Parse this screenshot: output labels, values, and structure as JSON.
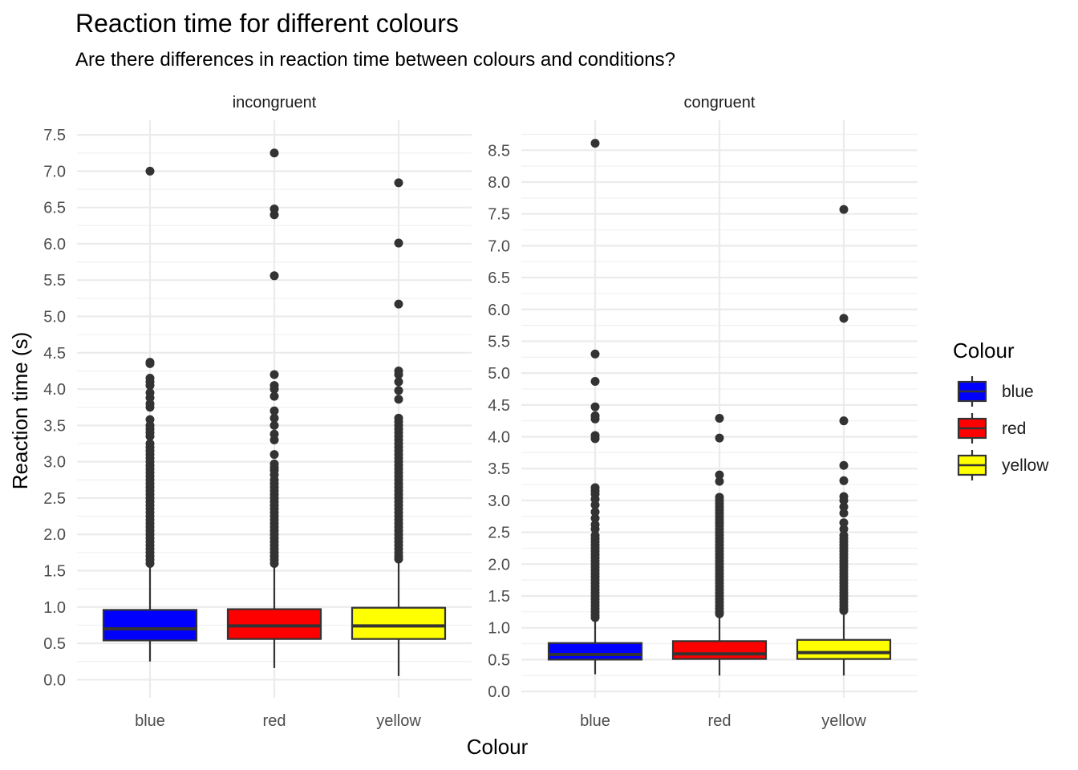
{
  "chart_data": {
    "type": "boxplot",
    "title": "Reaction time for different colours",
    "subtitle": "Are there differences in reaction time between colours and conditions?",
    "xlabel": "Colour",
    "ylabel": "Reaction time (s)",
    "legend": {
      "title": "Colour",
      "position": "right",
      "items": [
        {
          "label": "blue",
          "color": "#0000ff"
        },
        {
          "label": "red",
          "color": "#ff0000"
        },
        {
          "label": "yellow",
          "color": "#ffff00"
        }
      ]
    },
    "grid": true,
    "panels": [
      {
        "label": "incongruent",
        "ylim": [
          -0.25,
          7.7
        ],
        "yticks": [
          "0.0",
          "0.5",
          "1.0",
          "1.5",
          "2.0",
          "2.5",
          "3.0",
          "3.5",
          "4.0",
          "4.5",
          "5.0",
          "5.5",
          "6.0",
          "6.5",
          "7.0",
          "7.5"
        ],
        "categories": [
          "blue",
          "red",
          "yellow"
        ],
        "boxes": [
          {
            "category": "blue",
            "min": 0.25,
            "q1": 0.54,
            "median": 0.7,
            "q3": 0.96,
            "whisker_high": 1.58,
            "outliers": [
              7.0,
              4.37,
              4.35,
              4.15,
              4.1,
              4.05,
              3.95,
              3.88,
              3.8,
              3.75,
              3.58,
              3.5,
              3.45,
              3.4,
              3.35,
              3.25,
              3.2,
              3.15,
              3.1,
              3.05,
              3.0,
              2.95,
              2.9,
              2.85,
              2.8,
              2.75,
              2.7,
              2.65,
              2.6,
              2.55,
              2.5,
              2.45,
              2.4,
              2.35,
              2.3,
              2.25,
              2.2,
              2.15,
              2.1,
              2.05,
              2.0,
              1.95,
              1.9,
              1.85,
              1.8,
              1.75,
              1.7,
              1.65,
              1.6
            ]
          },
          {
            "category": "red",
            "min": 0.16,
            "q1": 0.56,
            "median": 0.74,
            "q3": 0.97,
            "whisker_high": 1.57,
            "outliers": [
              7.25,
              6.48,
              6.4,
              5.56,
              4.2,
              4.05,
              4.0,
              3.9,
              3.7,
              3.6,
              3.5,
              3.38,
              3.3,
              3.1,
              2.97,
              2.92,
              2.88,
              2.82,
              2.75,
              2.7,
              2.65,
              2.6,
              2.55,
              2.5,
              2.45,
              2.4,
              2.35,
              2.3,
              2.25,
              2.2,
              2.15,
              2.1,
              2.05,
              2.0,
              1.95,
              1.9,
              1.85,
              1.8,
              1.75,
              1.7,
              1.65,
              1.6
            ]
          },
          {
            "category": "yellow",
            "min": 0.05,
            "q1": 0.56,
            "median": 0.74,
            "q3": 0.99,
            "whisker_high": 1.63,
            "outliers": [
              6.84,
              6.01,
              5.17,
              4.25,
              4.2,
              4.1,
              3.98,
              3.86,
              3.6,
              3.55,
              3.5,
              3.45,
              3.4,
              3.35,
              3.3,
              3.25,
              3.2,
              3.15,
              3.1,
              3.05,
              3.0,
              2.95,
              2.9,
              2.85,
              2.8,
              2.75,
              2.7,
              2.65,
              2.6,
              2.55,
              2.5,
              2.45,
              2.4,
              2.35,
              2.3,
              2.25,
              2.2,
              2.15,
              2.1,
              2.05,
              2.0,
              1.95,
              1.9,
              1.85,
              1.8,
              1.75,
              1.7,
              1.66
            ]
          }
        ]
      },
      {
        "label": "congruent",
        "ylim": [
          -0.1,
          8.97
        ],
        "yticks": [
          "0.0",
          "0.5",
          "1.0",
          "1.5",
          "2.0",
          "2.5",
          "3.0",
          "3.5",
          "4.0",
          "4.5",
          "5.0",
          "5.5",
          "6.0",
          "6.5",
          "7.0",
          "7.5",
          "8.0",
          "8.5"
        ],
        "categories": [
          "blue",
          "red",
          "yellow"
        ],
        "boxes": [
          {
            "category": "blue",
            "min": 0.27,
            "q1": 0.5,
            "median": 0.58,
            "q3": 0.76,
            "whisker_high": 1.14,
            "outliers": [
              8.61,
              5.3,
              4.87,
              4.47,
              4.33,
              4.28,
              4.02,
              3.97,
              3.2,
              3.15,
              3.1,
              3.02,
              2.93,
              2.82,
              2.72,
              2.62,
              2.55,
              2.45,
              2.4,
              2.35,
              2.3,
              2.25,
              2.2,
              2.15,
              2.1,
              2.05,
              2.0,
              1.95,
              1.9,
              1.85,
              1.8,
              1.75,
              1.7,
              1.65,
              1.6,
              1.55,
              1.5,
              1.45,
              1.4,
              1.35,
              1.3,
              1.25,
              1.2,
              1.16
            ]
          },
          {
            "category": "red",
            "min": 0.25,
            "q1": 0.51,
            "median": 0.59,
            "q3": 0.79,
            "whisker_high": 1.21,
            "outliers": [
              4.29,
              3.98,
              3.4,
              3.3,
              3.05,
              3.0,
              2.95,
              2.9,
              2.85,
              2.8,
              2.75,
              2.7,
              2.65,
              2.6,
              2.55,
              2.5,
              2.45,
              2.4,
              2.35,
              2.3,
              2.25,
              2.2,
              2.15,
              2.1,
              2.05,
              2.0,
              1.95,
              1.9,
              1.85,
              1.8,
              1.75,
              1.7,
              1.65,
              1.6,
              1.55,
              1.5,
              1.45,
              1.4,
              1.35,
              1.3,
              1.25,
              1.22
            ]
          },
          {
            "category": "yellow",
            "min": 0.25,
            "q1": 0.51,
            "median": 0.61,
            "q3": 0.81,
            "whisker_high": 1.25,
            "outliers": [
              7.57,
              5.86,
              4.25,
              3.55,
              3.31,
              3.06,
              3.0,
              2.9,
              2.8,
              2.65,
              2.55,
              2.45,
              2.4,
              2.35,
              2.3,
              2.25,
              2.2,
              2.15,
              2.1,
              2.05,
              2.0,
              1.95,
              1.9,
              1.85,
              1.8,
              1.75,
              1.7,
              1.65,
              1.6,
              1.55,
              1.5,
              1.45,
              1.4,
              1.35,
              1.3,
              1.27
            ]
          }
        ]
      }
    ]
  }
}
